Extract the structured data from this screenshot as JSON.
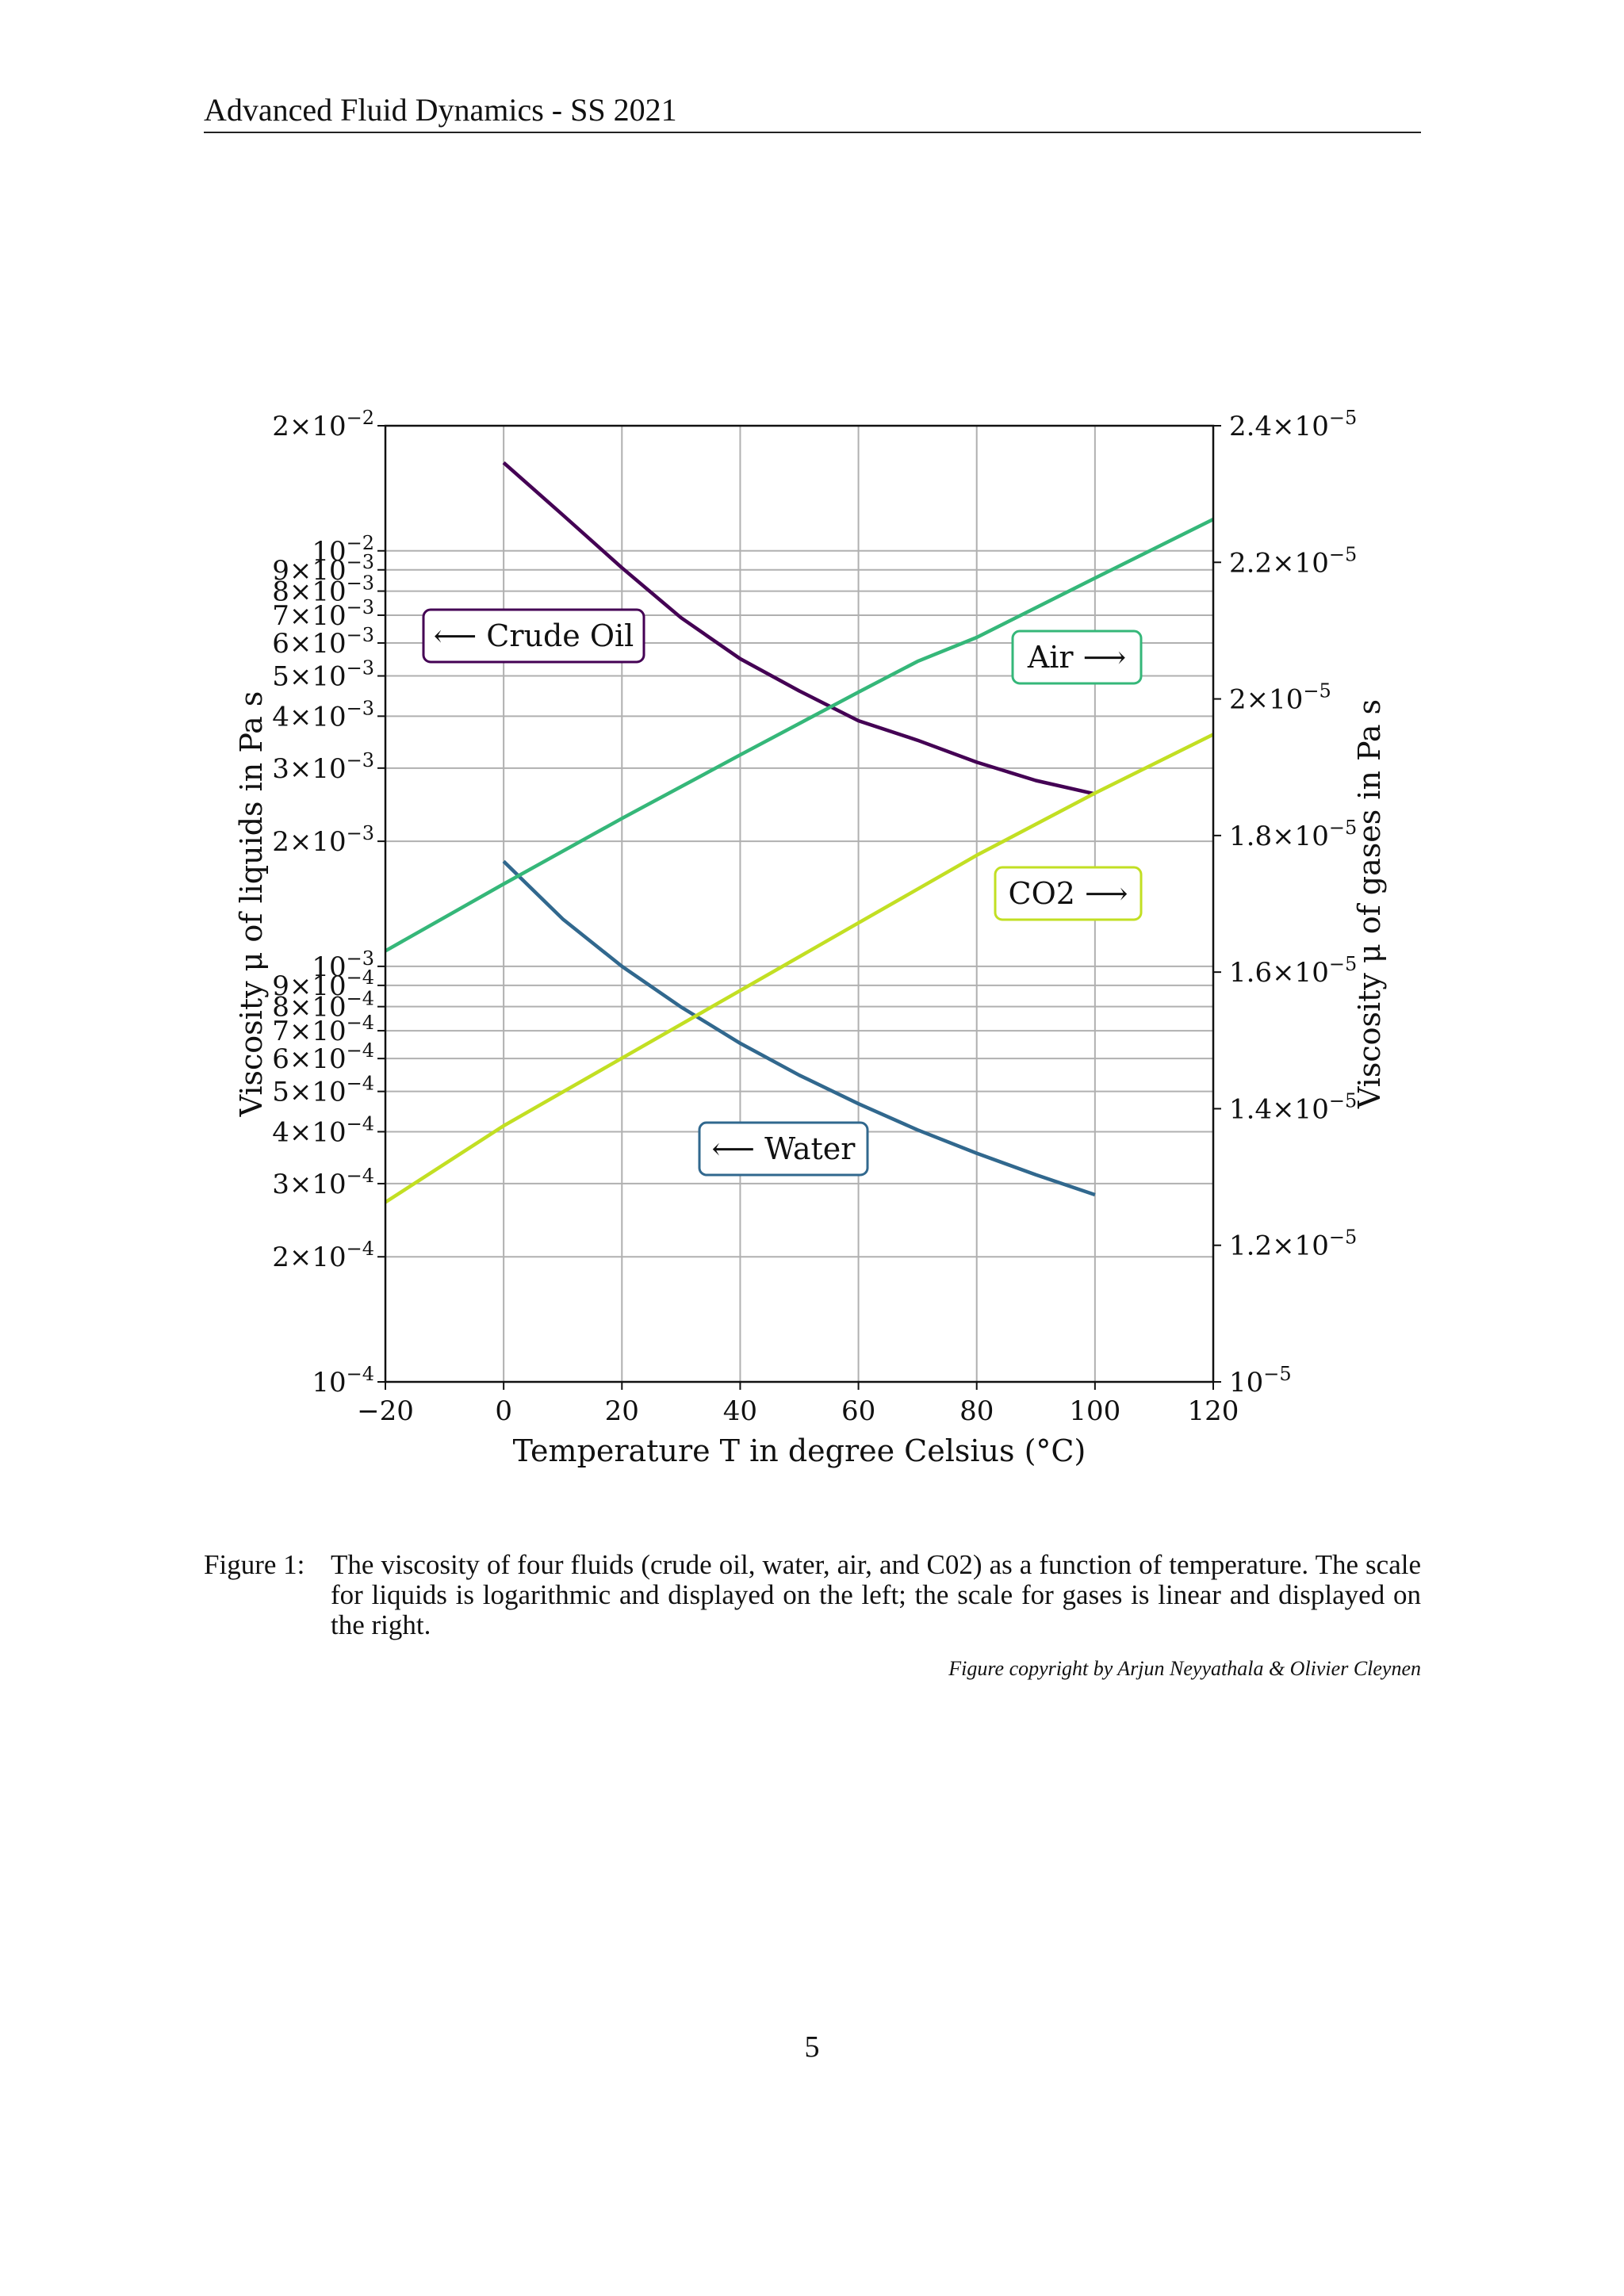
{
  "header": {
    "title": "Advanced Fluid Dynamics - SS 2021"
  },
  "caption": {
    "label": "Figure 1:",
    "text": "The viscosity of four fluids (crude oil, water, air, and C02) as a function of temperature. The scale for liquids is logarithmic and displayed on the left; the scale for gases is linear and displayed on the right.",
    "credit": "Figure copyright by Arjun Neyyathala & Olivier Cleynen"
  },
  "page_number": "5",
  "chart_data": {
    "type": "line",
    "grid": true,
    "x_axis": {
      "label": "Temperature T in degree Celsius (°C)",
      "range": [
        -20,
        120
      ],
      "ticks": [
        -20,
        0,
        20,
        40,
        60,
        80,
        100,
        120
      ],
      "tick_labels": [
        "−20",
        "0",
        "20",
        "40",
        "60",
        "80",
        "100",
        "120"
      ]
    },
    "y_left": {
      "label": "Viscosity μ of liquids in Pa s",
      "scale": "log",
      "range": [
        0.0001,
        0.02
      ],
      "ticks": [
        0.0001,
        0.0002,
        0.0003,
        0.0004,
        0.0005,
        0.0006,
        0.0007,
        0.0008,
        0.0009,
        0.001,
        0.002,
        0.003,
        0.004,
        0.005,
        0.006,
        0.007,
        0.008,
        0.009,
        0.01,
        0.02
      ],
      "tick_labels": [
        {
          "m": "",
          "e": "−4"
        },
        {
          "m": "2×",
          "e": "−4"
        },
        {
          "m": "3×",
          "e": "−4"
        },
        {
          "m": "4×",
          "e": "−4"
        },
        {
          "m": "5×",
          "e": "−4"
        },
        {
          "m": "6×",
          "e": "−4"
        },
        {
          "m": "7×",
          "e": "−4"
        },
        {
          "m": "8×",
          "e": "−4"
        },
        {
          "m": "9×",
          "e": "−4"
        },
        {
          "m": "",
          "e": "−3"
        },
        {
          "m": "2×",
          "e": "−3"
        },
        {
          "m": "3×",
          "e": "−3"
        },
        {
          "m": "4×",
          "e": "−3"
        },
        {
          "m": "5×",
          "e": "−3"
        },
        {
          "m": "6×",
          "e": "−3"
        },
        {
          "m": "7×",
          "e": "−3"
        },
        {
          "m": "8×",
          "e": "−3"
        },
        {
          "m": "9×",
          "e": "−3"
        },
        {
          "m": "",
          "e": "−2"
        },
        {
          "m": "2×",
          "e": "−2"
        }
      ]
    },
    "y_right": {
      "label": "Viscosity μ of gases in Pa s",
      "scale": "linear",
      "range": [
        1e-05,
        2.4e-05
      ],
      "ticks": [
        1e-05,
        1.2e-05,
        1.4e-05,
        1.6e-05,
        1.8e-05,
        2e-05,
        2.2e-05,
        2.4e-05
      ],
      "tick_labels": [
        {
          "m": "",
          "e": "−5"
        },
        {
          "m": "1.2×",
          "e": "−5"
        },
        {
          "m": "1.4×",
          "e": "−5"
        },
        {
          "m": "1.6×",
          "e": "−5"
        },
        {
          "m": "1.8×",
          "e": "−5"
        },
        {
          "m": "2×",
          "e": "−5"
        },
        {
          "m": "2.2×",
          "e": "−5"
        },
        {
          "m": "2.4×",
          "e": "−5"
        }
      ]
    },
    "series": [
      {
        "name": "Crude Oil",
        "axis": "left",
        "color": "#440154",
        "x": [
          0,
          10,
          20,
          30,
          40,
          50,
          60,
          70,
          80,
          90,
          100
        ],
        "y": [
          0.0163,
          0.0122,
          0.0091,
          0.0069,
          0.0055,
          0.0046,
          0.0039,
          0.0035,
          0.0031,
          0.0028,
          0.0026
        ]
      },
      {
        "name": "Water",
        "axis": "left",
        "color": "#31688e",
        "x": [
          0,
          10,
          20,
          30,
          40,
          50,
          60,
          70,
          80,
          90,
          100
        ],
        "y": [
          0.00179,
          0.0013,
          0.001,
          0.000798,
          0.000653,
          0.000547,
          0.000467,
          0.000404,
          0.000355,
          0.000315,
          0.000282
        ]
      },
      {
        "name": "Air",
        "axis": "right",
        "color": "#35b779",
        "x": [
          -20,
          0,
          20,
          40,
          60,
          70,
          80,
          100,
          120
        ],
        "y": [
          1.631e-05,
          1.729e-05,
          1.825e-05,
          1.918e-05,
          2.01e-05,
          2.055e-05,
          2.09e-05,
          2.177e-05,
          2.263e-05
        ]
      },
      {
        "name": "CO2",
        "axis": "right",
        "color": "#c2df23",
        "x": [
          -20,
          0,
          20,
          40,
          60,
          80,
          100,
          120
        ],
        "y": [
          1.263e-05,
          1.375e-05,
          1.474e-05,
          1.573e-05,
          1.672e-05,
          1.771e-05,
          1.862e-05,
          1.948e-05
        ]
      }
    ],
    "annotations": [
      {
        "text": "⟵ Crude Oil",
        "series": "Crude Oil"
      },
      {
        "text": "Air ⟶",
        "series": "Air"
      },
      {
        "text": "CO2 ⟶",
        "series": "CO2"
      },
      {
        "text": "⟵ Water",
        "series": "Water"
      }
    ]
  }
}
